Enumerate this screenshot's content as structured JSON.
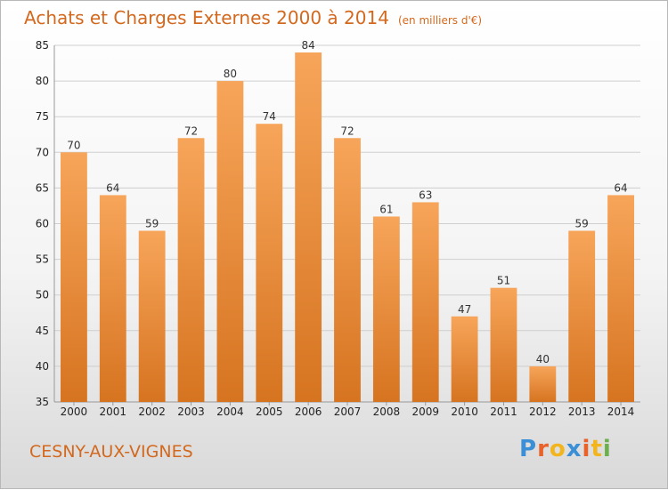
{
  "chart_data": {
    "type": "bar",
    "title": "Achats et Charges Externes 2000 à 2014",
    "subtitle": "(en milliers d'€)",
    "categories": [
      "2000",
      "2001",
      "2002",
      "2003",
      "2004",
      "2005",
      "2006",
      "2007",
      "2008",
      "2009",
      "2010",
      "2011",
      "2012",
      "2013",
      "2014"
    ],
    "values": [
      70,
      64,
      59,
      72,
      80,
      74,
      84,
      72,
      61,
      63,
      47,
      51,
      40,
      59,
      64
    ],
    "ylim": [
      35,
      85
    ],
    "yticks": [
      35,
      40,
      45,
      50,
      55,
      60,
      65,
      70,
      75,
      80,
      85
    ],
    "grid": true,
    "bar_color": "#f0963c",
    "data_labels": true
  },
  "footer": {
    "commune": "CESNY-AUX-VIGNES",
    "logo_letters": [
      "P",
      "r",
      "o",
      "x",
      "i",
      "t",
      "i"
    ],
    "logo_colors": [
      "#3a8fd6",
      "#e8622a",
      "#f2b51d",
      "#3a8fd6",
      "#e8622a",
      "#f2b51d",
      "#6ab04c"
    ]
  }
}
